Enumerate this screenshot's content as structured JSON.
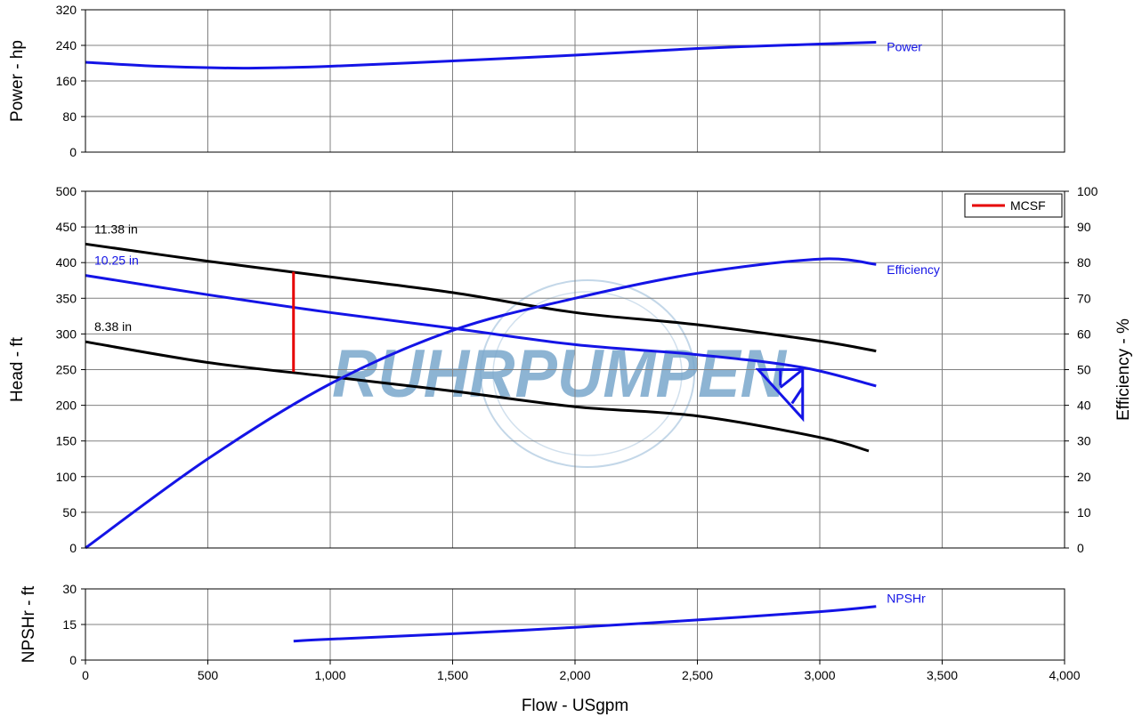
{
  "chart_data": [
    {
      "type": "line",
      "name": "power-panel",
      "ylabel": "Power - hp",
      "ylim": [
        0,
        320
      ],
      "yticks": [
        0,
        80,
        160,
        240,
        320
      ],
      "xlim": [
        0,
        4000
      ],
      "grid": true,
      "series": [
        {
          "name": "Power",
          "color": "#1414e6",
          "x": [
            0,
            300,
            600,
            800,
            1000,
            1500,
            2000,
            2500,
            3000,
            3230
          ],
          "y": [
            202,
            193,
            189,
            190,
            193,
            205,
            218,
            233,
            243,
            247
          ]
        }
      ]
    },
    {
      "type": "line",
      "name": "head-panel",
      "ylabel": "Head - ft",
      "y2label": "Efficiency - %",
      "ylim": [
        0,
        500
      ],
      "yticks": [
        0,
        50,
        100,
        150,
        200,
        250,
        300,
        350,
        400,
        450,
        500
      ],
      "y2lim": [
        0,
        100
      ],
      "y2ticks": [
        0,
        10,
        20,
        30,
        40,
        50,
        60,
        70,
        80,
        90,
        100
      ],
      "xlim": [
        0,
        4000
      ],
      "grid": true,
      "legend": {
        "position": "top-right",
        "entries": [
          {
            "label": "MCSF",
            "color": "#e60000"
          }
        ]
      },
      "head_curves": [
        {
          "name": "11.38 in",
          "color": "#000000",
          "x": [
            0,
            500,
            1000,
            1500,
            2000,
            2500,
            3000,
            3230
          ],
          "y": [
            426,
            402,
            380,
            358,
            330,
            313,
            290,
            276
          ]
        },
        {
          "name": "10.25 in",
          "color": "#1414e6",
          "x": [
            0,
            500,
            1000,
            1500,
            2000,
            2500,
            2930,
            3230
          ],
          "y": [
            382,
            355,
            330,
            308,
            285,
            271,
            253,
            227
          ]
        },
        {
          "name": "8.38 in",
          "color": "#000000",
          "x": [
            0,
            500,
            1000,
            1500,
            2000,
            2500,
            3000,
            3200
          ],
          "y": [
            289,
            260,
            240,
            220,
            198,
            185,
            155,
            136
          ]
        }
      ],
      "efficiency_curve": {
        "name": "Efficiency",
        "color": "#1414e6",
        "x": [
          0,
          500,
          1000,
          1500,
          2000,
          2500,
          3000,
          3230
        ],
        "y": [
          0,
          25,
          46,
          61,
          70,
          77,
          81,
          79.5
        ]
      },
      "mcsf_line": {
        "x": 850,
        "y_from": 247,
        "y_to": 387,
        "color": "#e60000"
      },
      "bep_marker": {
        "x": 2930,
        "y": 250
      }
    },
    {
      "type": "line",
      "name": "npsh-panel",
      "ylabel": "NPSHr - ft",
      "xlabel": "Flow - USgpm",
      "ylim": [
        0,
        30
      ],
      "yticks": [
        0,
        15,
        30
      ],
      "xlim": [
        0,
        4000
      ],
      "xticks": [
        0,
        500,
        1000,
        1500,
        2000,
        2500,
        3000,
        3500,
        4000
      ],
      "xticklabels": [
        "0",
        "500",
        "1,000",
        "1,500",
        "2,000",
        "2,500",
        "3,000",
        "3,500",
        "4,000"
      ],
      "grid": true,
      "series": [
        {
          "name": "NPSHr",
          "color": "#1414e6",
          "x": [
            850,
            1000,
            1500,
            2000,
            2500,
            3000,
            3230
          ],
          "y": [
            8.0,
            8.8,
            11.1,
            13.8,
            16.9,
            20.4,
            22.6
          ]
        }
      ]
    }
  ],
  "watermark": {
    "text": "RUHRPUMPEN",
    "color": "#7aa7cc"
  }
}
